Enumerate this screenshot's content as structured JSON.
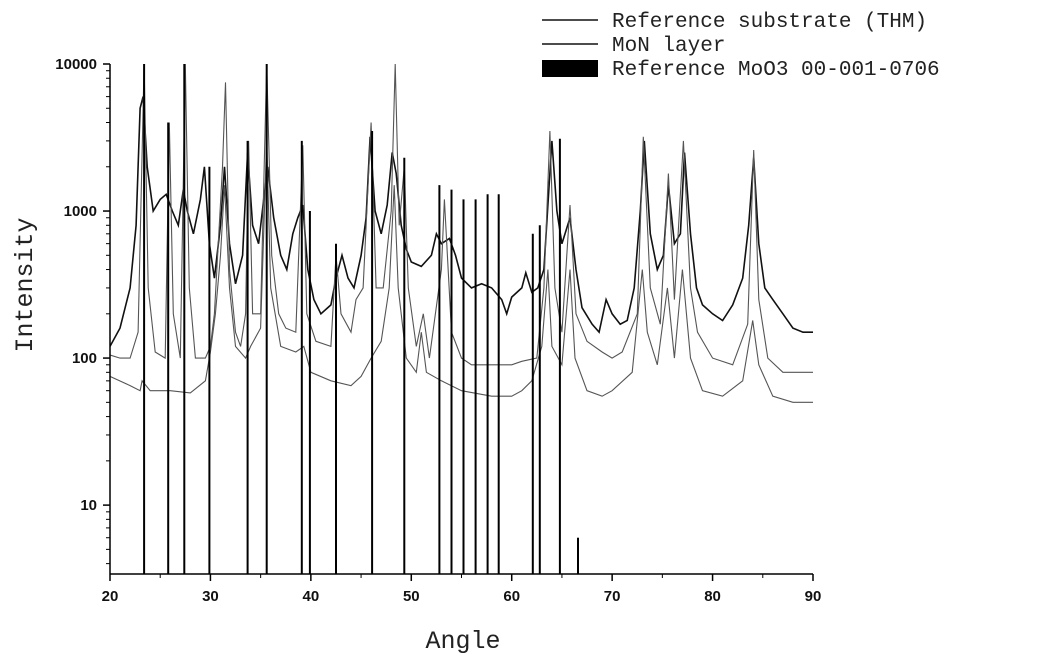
{
  "chart_data": {
    "type": "line",
    "title": "",
    "xlabel": "Angle",
    "ylabel": "Intensity",
    "xlim": [
      20,
      90
    ],
    "ylim": [
      3.4,
      10000
    ],
    "yscale": "log",
    "grid": false,
    "legend_position": "top-right",
    "x_ticks": [
      20,
      30,
      40,
      50,
      60,
      70,
      80,
      90
    ],
    "x_tick_labels": [
      "20",
      "30",
      "40",
      "50",
      "60",
      "70",
      "80",
      "90"
    ],
    "y_ticks": [
      10,
      100,
      1000,
      10000
    ],
    "y_tick_labels": [
      "10",
      "100",
      "1000",
      "10000"
    ],
    "legend": [
      {
        "label": "Reference substrate (THM)",
        "style": "line"
      },
      {
        "label": "MoN layer",
        "style": "line"
      },
      {
        "label": "Reference MoO3 00-001-0706",
        "style": "filled-box"
      }
    ],
    "series": [
      {
        "name": "MoN layer",
        "color": "#111111",
        "points": [
          [
            20,
            120
          ],
          [
            21,
            160
          ],
          [
            22,
            300
          ],
          [
            22.6,
            800
          ],
          [
            23,
            5000
          ],
          [
            23.3,
            6000
          ],
          [
            23.7,
            2000
          ],
          [
            24.3,
            1000
          ],
          [
            25,
            1200
          ],
          [
            25.6,
            1300
          ],
          [
            26.2,
            1000
          ],
          [
            26.8,
            800
          ],
          [
            27.3,
            1400
          ],
          [
            27.7,
            1000
          ],
          [
            28.3,
            700
          ],
          [
            29.0,
            1200
          ],
          [
            29.4,
            2000
          ],
          [
            29.9,
            600
          ],
          [
            30.4,
            350
          ],
          [
            31.0,
            800
          ],
          [
            31.4,
            2000
          ],
          [
            31.9,
            600
          ],
          [
            32.5,
            320
          ],
          [
            33.2,
            500
          ],
          [
            33.7,
            2500
          ],
          [
            34.2,
            800
          ],
          [
            34.8,
            600
          ],
          [
            35.3,
            1200
          ],
          [
            35.7,
            2000
          ],
          [
            36.3,
            900
          ],
          [
            37,
            500
          ],
          [
            37.6,
            400
          ],
          [
            38.2,
            700
          ],
          [
            38.7,
            900
          ],
          [
            39.2,
            1100
          ],
          [
            39.7,
            400
          ],
          [
            40.3,
            250
          ],
          [
            41,
            200
          ],
          [
            42,
            230
          ],
          [
            42.5,
            350
          ],
          [
            43.1,
            500
          ],
          [
            43.7,
            350
          ],
          [
            44.3,
            300
          ],
          [
            45,
            500
          ],
          [
            45.5,
            900
          ],
          [
            45.9,
            3200
          ],
          [
            46.4,
            1000
          ],
          [
            47.0,
            700
          ],
          [
            47.6,
            1100
          ],
          [
            48.1,
            2500
          ],
          [
            48.5,
            1800
          ],
          [
            49.0,
            800
          ],
          [
            49.5,
            550
          ],
          [
            50,
            450
          ],
          [
            51,
            420
          ],
          [
            52,
            500
          ],
          [
            52.5,
            700
          ],
          [
            53,
            600
          ],
          [
            53.8,
            650
          ],
          [
            54.4,
            500
          ],
          [
            55,
            350
          ],
          [
            56,
            300
          ],
          [
            57,
            320
          ],
          [
            58,
            300
          ],
          [
            59,
            250
          ],
          [
            59.5,
            200
          ],
          [
            60,
            260
          ],
          [
            61,
            300
          ],
          [
            61.4,
            380
          ],
          [
            62,
            280
          ],
          [
            62.6,
            300
          ],
          [
            63.2,
            400
          ],
          [
            63.6,
            1100
          ],
          [
            64.0,
            3000
          ],
          [
            64.5,
            1000
          ],
          [
            65,
            600
          ],
          [
            65.8,
            900
          ],
          [
            66.4,
            400
          ],
          [
            67,
            220
          ],
          [
            68,
            170
          ],
          [
            68.7,
            150
          ],
          [
            69.4,
            250
          ],
          [
            70.0,
            200
          ],
          [
            70.8,
            170
          ],
          [
            71.5,
            180
          ],
          [
            72.2,
            300
          ],
          [
            72.8,
            1000
          ],
          [
            73.2,
            3000
          ],
          [
            73.8,
            700
          ],
          [
            74.5,
            400
          ],
          [
            75.1,
            500
          ],
          [
            75.6,
            1500
          ],
          [
            76.2,
            600
          ],
          [
            76.8,
            700
          ],
          [
            77.2,
            2500
          ],
          [
            77.8,
            700
          ],
          [
            78.4,
            300
          ],
          [
            79,
            230
          ],
          [
            80,
            200
          ],
          [
            81,
            180
          ],
          [
            82,
            230
          ],
          [
            83,
            350
          ],
          [
            83.6,
            800
          ],
          [
            84.1,
            2300
          ],
          [
            84.6,
            600
          ],
          [
            85.2,
            300
          ],
          [
            86,
            250
          ],
          [
            87,
            200
          ],
          [
            88,
            160
          ],
          [
            89,
            150
          ],
          [
            90,
            150
          ]
        ]
      },
      {
        "name": "Reference substrate (THM)",
        "color": "#555555",
        "points": [
          [
            20,
            105
          ],
          [
            21,
            100
          ],
          [
            22,
            100
          ],
          [
            22.8,
            150
          ],
          [
            23.4,
            10000
          ],
          [
            23.8,
            300
          ],
          [
            24.5,
            110
          ],
          [
            25.5,
            100
          ],
          [
            25.9,
            4000
          ],
          [
            26.3,
            200
          ],
          [
            27,
            100
          ],
          [
            27.5,
            10000
          ],
          [
            27.9,
            300
          ],
          [
            28.5,
            100
          ],
          [
            29.5,
            100
          ],
          [
            30.0,
            120
          ],
          [
            30.4,
            200
          ],
          [
            31.2,
            2000
          ],
          [
            31.5,
            7500
          ],
          [
            31.9,
            400
          ],
          [
            32.5,
            150
          ],
          [
            33,
            120
          ],
          [
            33.5,
            200
          ],
          [
            33.8,
            3000
          ],
          [
            34.2,
            200
          ],
          [
            35,
            200
          ],
          [
            35.6,
            10000
          ],
          [
            36.1,
            500
          ],
          [
            36.8,
            200
          ],
          [
            37.5,
            160
          ],
          [
            38.5,
            150
          ],
          [
            39.2,
            2800
          ],
          [
            39.6,
            200
          ],
          [
            40.5,
            130
          ],
          [
            42,
            120
          ],
          [
            42.5,
            500
          ],
          [
            43,
            200
          ],
          [
            44,
            150
          ],
          [
            44.5,
            250
          ],
          [
            45.2,
            300
          ],
          [
            46.0,
            4000
          ],
          [
            46.5,
            300
          ],
          [
            47.2,
            300
          ],
          [
            48,
            1000
          ],
          [
            48.4,
            10000
          ],
          [
            48.8,
            800
          ],
          [
            49.3,
            2000
          ],
          [
            49.7,
            300
          ],
          [
            50.5,
            120
          ],
          [
            51.2,
            200
          ],
          [
            51.8,
            100
          ],
          [
            53,
            400
          ],
          [
            53.3,
            1200
          ],
          [
            54,
            150
          ],
          [
            55,
            100
          ],
          [
            56,
            90
          ],
          [
            58,
            90
          ],
          [
            60,
            90
          ],
          [
            61,
            95
          ],
          [
            62.5,
            100
          ],
          [
            63.2,
            300
          ],
          [
            63.8,
            3500
          ],
          [
            64.3,
            300
          ],
          [
            65,
            150
          ],
          [
            65.8,
            1100
          ],
          [
            66.4,
            200
          ],
          [
            67.5,
            130
          ],
          [
            69,
            110
          ],
          [
            70,
            100
          ],
          [
            71,
            110
          ],
          [
            72.5,
            200
          ],
          [
            73.1,
            3200
          ],
          [
            73.8,
            300
          ],
          [
            74.8,
            170
          ],
          [
            75.6,
            1800
          ],
          [
            76.2,
            250
          ],
          [
            77.1,
            3000
          ],
          [
            77.8,
            300
          ],
          [
            78.5,
            150
          ],
          [
            80,
            100
          ],
          [
            82,
            90
          ],
          [
            83.5,
            170
          ],
          [
            84.1,
            2600
          ],
          [
            84.6,
            250
          ],
          [
            85.5,
            100
          ],
          [
            87,
            80
          ],
          [
            89,
            80
          ],
          [
            90,
            80
          ]
        ]
      },
      {
        "name": "Reference substrate (THM) (lower trace)",
        "color": "#555555",
        "points": [
          [
            20,
            75
          ],
          [
            22,
            65
          ],
          [
            23,
            60
          ],
          [
            23.2,
            70
          ],
          [
            24,
            60
          ],
          [
            26,
            60
          ],
          [
            28,
            58
          ],
          [
            29.5,
            70
          ],
          [
            30,
            110
          ],
          [
            30.5,
            200
          ],
          [
            31,
            500
          ],
          [
            31.4,
            1500
          ],
          [
            31.9,
            300
          ],
          [
            32.5,
            120
          ],
          [
            33.5,
            100
          ],
          [
            34,
            120
          ],
          [
            35,
            160
          ],
          [
            35.6,
            3000
          ],
          [
            36,
            300
          ],
          [
            37,
            120
          ],
          [
            38.5,
            110
          ],
          [
            39.3,
            120
          ],
          [
            40,
            80
          ],
          [
            42,
            70
          ],
          [
            44,
            65
          ],
          [
            45,
            75
          ],
          [
            46,
            100
          ],
          [
            47,
            130
          ],
          [
            47.8,
            300
          ],
          [
            48.3,
            1500
          ],
          [
            48.7,
            300
          ],
          [
            49.5,
            100
          ],
          [
            50.5,
            80
          ],
          [
            51,
            150
          ],
          [
            51.5,
            80
          ],
          [
            53,
            70
          ],
          [
            55,
            60
          ],
          [
            58,
            55
          ],
          [
            60,
            55
          ],
          [
            61,
            60
          ],
          [
            62,
            70
          ],
          [
            63,
            120
          ],
          [
            63.6,
            400
          ],
          [
            64,
            120
          ],
          [
            65,
            90
          ],
          [
            65.8,
            400
          ],
          [
            66.3,
            100
          ],
          [
            67.5,
            60
          ],
          [
            69,
            55
          ],
          [
            70,
            60
          ],
          [
            72,
            80
          ],
          [
            73,
            400
          ],
          [
            73.5,
            150
          ],
          [
            74.5,
            90
          ],
          [
            75.5,
            300
          ],
          [
            76.2,
            100
          ],
          [
            77,
            400
          ],
          [
            77.8,
            100
          ],
          [
            79,
            60
          ],
          [
            81,
            55
          ],
          [
            83,
            70
          ],
          [
            84,
            180
          ],
          [
            84.6,
            90
          ],
          [
            86,
            55
          ],
          [
            88,
            50
          ],
          [
            90,
            50
          ]
        ]
      }
    ],
    "reference_sticks": {
      "name": "Reference MoO3 00-001-0706",
      "color": "#000000",
      "baseline": 3.4,
      "x": [
        23.4,
        25.8,
        27.4,
        29.9,
        33.7,
        35.6,
        39.1,
        39.9,
        42.5,
        46.1,
        49.3,
        52.8,
        54.0,
        55.2,
        56.4,
        57.6,
        58.7,
        62.1,
        62.8,
        64.8,
        66.6
      ],
      "y": [
        10000,
        4000,
        10000,
        2000,
        3000,
        10000,
        3000,
        1000,
        600,
        3500,
        2300,
        1500,
        1400,
        1200,
        1200,
        1300,
        1300,
        700,
        800,
        3100,
        6
      ]
    }
  }
}
